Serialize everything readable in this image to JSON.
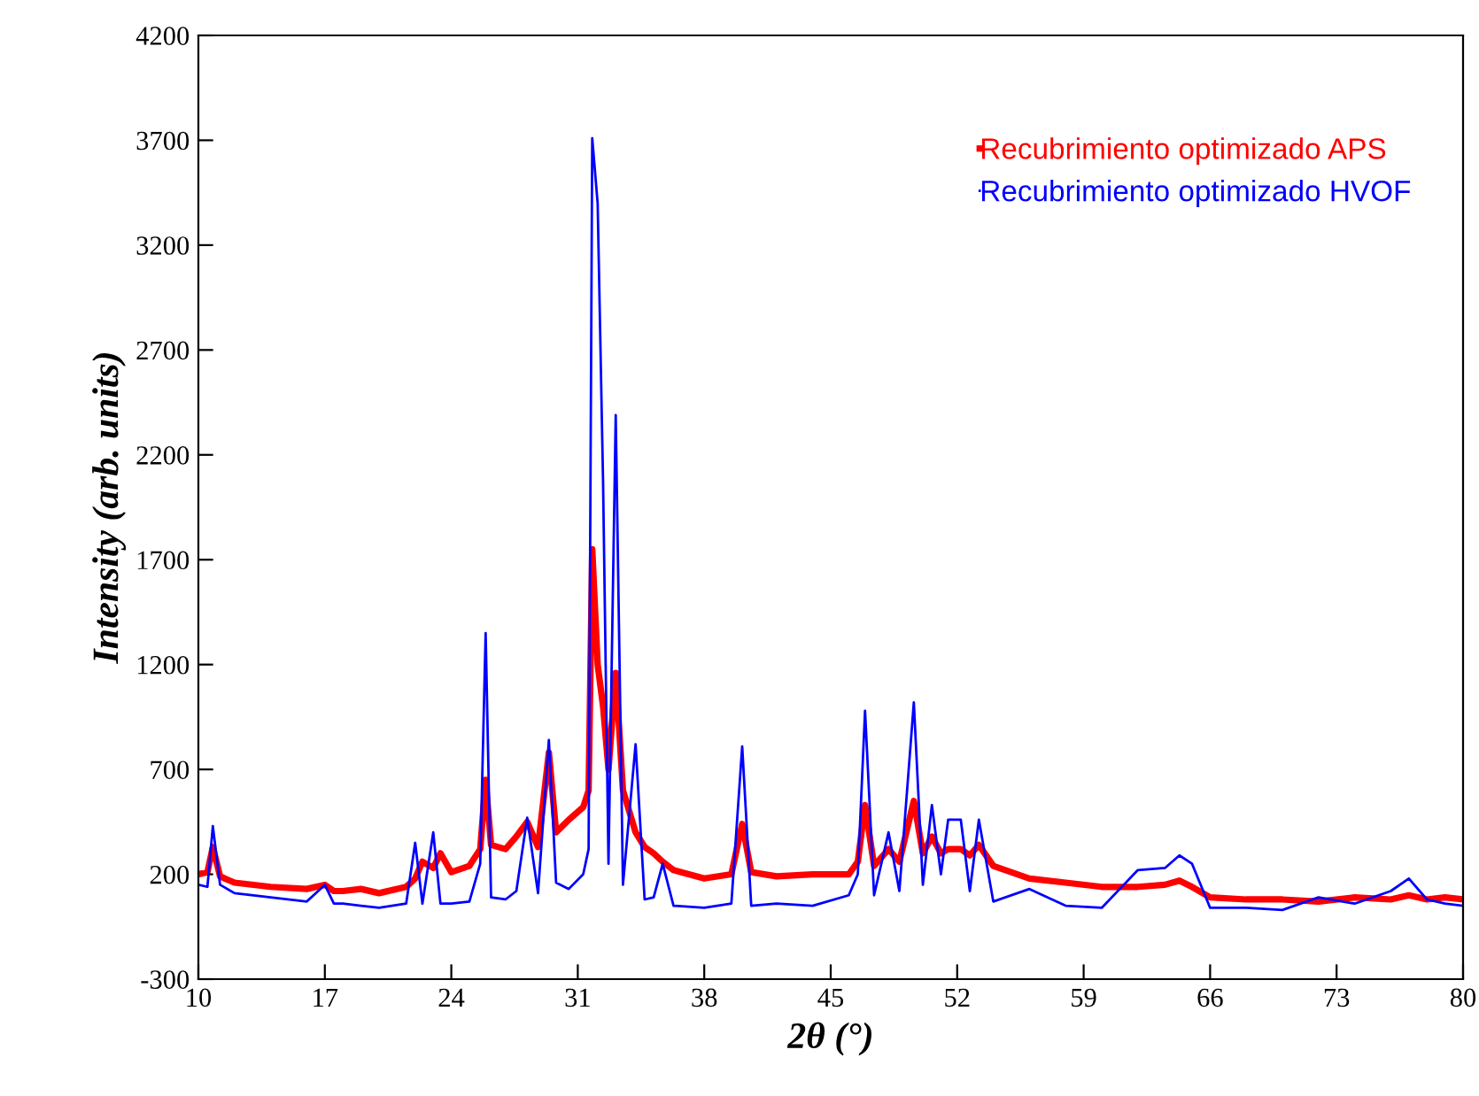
{
  "chart_data": {
    "type": "line",
    "xlabel": "2θ (°)",
    "ylabel": "Intensity (arb. units)",
    "xlim": [
      10,
      80
    ],
    "xticks": [
      10,
      17,
      24,
      31,
      38,
      45,
      52,
      59,
      66,
      73,
      80
    ],
    "ylim": [
      -300,
      4200
    ],
    "yticks": [
      -300,
      200,
      700,
      1200,
      1700,
      2200,
      2700,
      3200,
      3700,
      4200
    ],
    "grid": false,
    "legend": "top right",
    "marker": "none",
    "line_style": "solid",
    "series": [
      {
        "name": "Recubrimiento optimizado APS",
        "color": "#ff0000",
        "x": [
          10,
          10.5,
          10.8,
          11.2,
          12,
          14,
          16,
          17,
          17.5,
          18,
          19,
          20,
          21.5,
          22,
          22.4,
          23,
          23.4,
          24,
          25,
          25.6,
          25.9,
          26.2,
          27,
          27.6,
          28.2,
          28.8,
          29.4,
          29.8,
          30.5,
          31.3,
          31.6,
          31.8,
          32.1,
          32.4,
          32.7,
          33.1,
          33.5,
          34.2,
          34.7,
          35.2,
          35.7,
          36.3,
          38,
          39.5,
          40.1,
          40.6,
          42,
          44,
          46,
          46.5,
          46.9,
          47.4,
          48.2,
          48.8,
          49.6,
          50.1,
          50.6,
          51.1,
          51.5,
          52.2,
          52.7,
          53.2,
          54,
          56,
          58,
          60,
          62,
          63.5,
          64.3,
          65,
          66,
          68,
          70,
          72,
          74,
          76,
          77,
          78,
          79,
          80
        ],
        "values": [
          200,
          210,
          330,
          190,
          160,
          140,
          130,
          150,
          120,
          120,
          130,
          110,
          140,
          180,
          260,
          230,
          300,
          210,
          240,
          320,
          650,
          340,
          320,
          380,
          450,
          330,
          780,
          400,
          460,
          520,
          600,
          1750,
          1200,
          1000,
          700,
          1160,
          600,
          400,
          330,
          300,
          260,
          220,
          180,
          200,
          440,
          210,
          190,
          200,
          200,
          260,
          530,
          240,
          320,
          260,
          550,
          300,
          380,
          300,
          320,
          320,
          290,
          340,
          240,
          180,
          160,
          140,
          140,
          150,
          170,
          140,
          90,
          80,
          80,
          70,
          90,
          80,
          100,
          80,
          90,
          80
        ]
      },
      {
        "name": "Recubrimiento optimizado HVOF",
        "color": "#0000ff",
        "x": [
          10,
          10.5,
          10.8,
          11.2,
          12,
          14,
          16,
          17,
          17.5,
          18,
          19,
          20,
          21.5,
          22,
          22.4,
          23,
          23.4,
          24,
          25,
          25.6,
          25.9,
          26.2,
          27,
          27.6,
          28.2,
          28.8,
          29.4,
          29.8,
          30.5,
          31.3,
          31.6,
          31.8,
          32.1,
          32.4,
          32.7,
          33.1,
          33.5,
          34.2,
          34.7,
          35.2,
          35.7,
          36.3,
          38,
          39.5,
          40.1,
          40.6,
          42,
          44,
          46,
          46.5,
          46.9,
          47.4,
          48.2,
          48.8,
          49.6,
          50.1,
          50.6,
          51.1,
          51.5,
          52.2,
          52.7,
          53.2,
          54,
          56,
          58,
          60,
          62,
          63.5,
          64.3,
          65,
          66,
          68,
          70,
          72,
          74,
          76,
          77,
          78,
          79,
          80
        ],
        "values": [
          150,
          140,
          430,
          150,
          110,
          90,
          70,
          150,
          60,
          60,
          50,
          40,
          60,
          350,
          60,
          400,
          60,
          60,
          70,
          250,
          1350,
          90,
          80,
          120,
          470,
          110,
          840,
          160,
          130,
          200,
          320,
          3710,
          3400,
          2070,
          250,
          2390,
          150,
          820,
          80,
          90,
          250,
          50,
          40,
          60,
          810,
          50,
          60,
          50,
          100,
          200,
          980,
          100,
          400,
          120,
          1020,
          150,
          530,
          200,
          460,
          460,
          120,
          460,
          70,
          130,
          50,
          40,
          220,
          230,
          290,
          250,
          40,
          40,
          30,
          90,
          60,
          120,
          180,
          80,
          60,
          50
        ]
      }
    ]
  }
}
